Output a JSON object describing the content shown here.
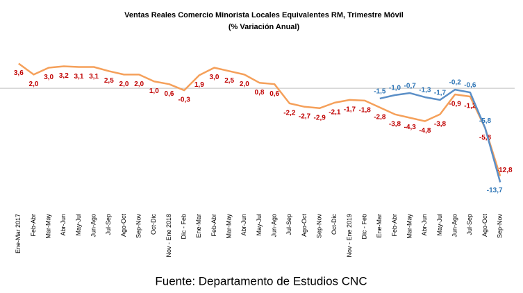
{
  "chart_data": {
    "type": "line",
    "title": "Ventas Reales Comercio Minorista Locales Equivalentes RM, Trimestre Móvil",
    "subtitle": "(% Variación Anual)",
    "source": "Fuente: Departamento de Estudios CNC",
    "categories": [
      "Ene-Mar 2017",
      "Feb-Abr",
      "Mar-May",
      "Abr-Jun",
      "May-Jul",
      "Jun-Ago",
      "Jul-Sep",
      "Ago-Oct",
      "Sep-Nov",
      "Oct-Dic",
      "Nov - Ene 2018",
      "Dic - Feb",
      "Ene-Mar",
      "Feb-Abr",
      "Mar-May",
      "Abr-Jun",
      "May-Jul",
      "Jun-Ago",
      "Jul-Sep",
      "Ago-Oct",
      "Sep-Nov",
      "Oct-Dic",
      "Nov - Ene 2019",
      "Dic - Feb",
      "Ene-Mar",
      "Feb-Abr",
      "Mar-May",
      "Abr-Jun",
      "May-Jul",
      "Jun-Ago",
      "Jul-Sep",
      "Ago-Oct",
      "Sep-Nov"
    ],
    "ylim": [
      -17.5,
      7.3
    ],
    "series": [
      {
        "color": "#f5a05a",
        "label_color": "#c00000",
        "values": [
          3.6,
          2.0,
          3.0,
          3.2,
          3.1,
          3.1,
          2.5,
          2.0,
          2.0,
          1.0,
          0.6,
          -0.3,
          1.9,
          3.0,
          2.5,
          2.0,
          0.8,
          0.6,
          -2.2,
          -2.7,
          -2.9,
          -2.1,
          -1.7,
          -1.8,
          -2.8,
          -3.8,
          -4.3,
          -4.8,
          -3.8,
          -0.9,
          -1.2,
          -5.8,
          -12.8
        ],
        "value_labels": [
          "3,6",
          "2,0",
          "3,0",
          "3,2",
          "3,1",
          "3,1",
          "2,5",
          "2,0",
          "2,0",
          "1,0",
          "0,6",
          "-0,3",
          "1,9",
          "3,0",
          "2,5",
          "2,0",
          "0,8",
          "0,6",
          "-2,2",
          "-2,7",
          "-2,9",
          "-2,1",
          "-1,7",
          "-1,8",
          "-2,8",
          "-3,8",
          "-4,3",
          "-4,8",
          "-3,8",
          "-0,9",
          "-1,2",
          "-5,8",
          "-12,8"
        ]
      },
      {
        "color": "#5b8fc7",
        "label_color": "#2e75b6",
        "values": [
          null,
          null,
          null,
          null,
          null,
          null,
          null,
          null,
          null,
          null,
          null,
          null,
          null,
          null,
          null,
          null,
          null,
          null,
          null,
          null,
          null,
          null,
          null,
          null,
          -1.5,
          -1.0,
          -0.7,
          -1.3,
          -1.7,
          -0.2,
          -0.6,
          -5.8,
          -13.7
        ],
        "value_labels": [
          null,
          null,
          null,
          null,
          null,
          null,
          null,
          null,
          null,
          null,
          null,
          null,
          null,
          null,
          null,
          null,
          null,
          null,
          null,
          null,
          null,
          null,
          null,
          null,
          "-1,5",
          "-1,0",
          "-0,7",
          "-1,3",
          "-1,7",
          "-0,2",
          "-0,6",
          "-5,8",
          "-13,7"
        ]
      }
    ]
  }
}
